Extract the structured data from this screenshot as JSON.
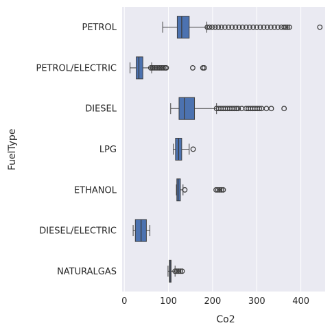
{
  "chart_data": {
    "type": "boxplot",
    "orientation": "horizontal",
    "xlabel": "Co2",
    "ylabel": "FuelType",
    "xlim": [
      -5,
      455
    ],
    "xticks": [
      0,
      100,
      200,
      300,
      400
    ],
    "grid": true,
    "colors": {
      "background": "#eaeaf2",
      "grid": "#ffffff",
      "box_fill": "#4c72b0",
      "box_edge": "#3d3d3d",
      "flier_edge": "#3d3d3d"
    },
    "categories": [
      "PETROL",
      "PETROL/ELECTRIC",
      "DIESEL",
      "LPG",
      "ETHANOL",
      "DIESEL/ELECTRIC",
      "NATURALGAS"
    ],
    "boxes": [
      {
        "category": "PETROL",
        "whisker_low": 87,
        "q1": 120,
        "median": 130,
        "q3": 147,
        "whisker_high": 187,
        "outliers": [
          188,
          193,
          199,
          206,
          213,
          220,
          228,
          236,
          244,
          252,
          260,
          268,
          276,
          284,
          292,
          300,
          308,
          316,
          324,
          332,
          340,
          348,
          356,
          362,
          366,
          370,
          374,
          443
        ]
      },
      {
        "category": "PETROL/ELECTRIC",
        "whisker_low": 13,
        "q1": 27,
        "median": 33,
        "q3": 42,
        "whisker_high": 62,
        "outliers": [
          60,
          64,
          68,
          72,
          76,
          80,
          84,
          88,
          92,
          95,
          155,
          178,
          181
        ]
      },
      {
        "category": "DIESEL",
        "whisker_low": 105,
        "q1": 124,
        "median": 136,
        "q3": 159,
        "whisker_high": 209,
        "outliers": [
          209,
          214,
          219,
          224,
          229,
          234,
          239,
          244,
          249,
          254,
          258,
          266,
          276,
          281,
          286,
          291,
          296,
          301,
          306,
          311,
          322,
          333,
          362
        ]
      },
      {
        "category": "LPG",
        "whisker_low": 111,
        "q1": 116,
        "median": 123,
        "q3": 130,
        "whisker_high": 147,
        "outliers": [
          156
        ]
      },
      {
        "category": "ETHANOL",
        "whisker_low": 118,
        "q1": 119,
        "median": 122,
        "q3": 127,
        "whisker_high": 133,
        "outliers": [
          137,
          208,
          212,
          216,
          220,
          224
        ]
      },
      {
        "category": "DIESEL/ELECTRIC",
        "whisker_low": 20,
        "q1": 25,
        "median": 38,
        "q3": 50,
        "whisker_high": 58,
        "outliers": []
      },
      {
        "category": "NATURALGAS",
        "whisker_low": 99,
        "q1": 102,
        "median": 104,
        "q3": 106,
        "whisker_high": 115,
        "outliers": [
          115,
          119,
          123,
          127,
          131
        ]
      }
    ]
  }
}
